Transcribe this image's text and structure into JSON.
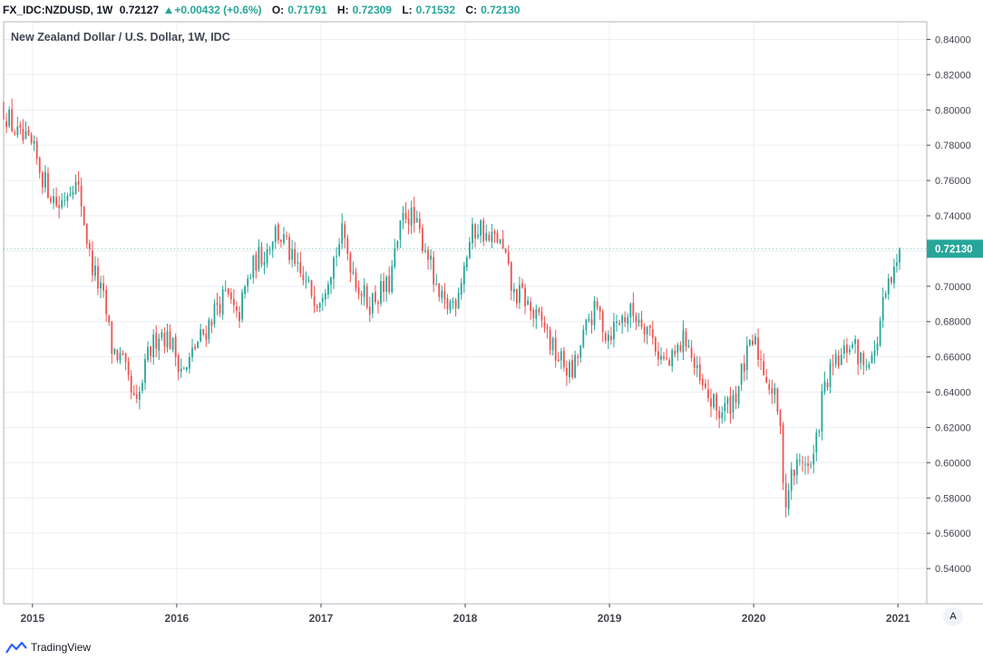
{
  "header": {
    "symbol": "FX_IDC:NZDUSD, 1W",
    "last": "0.72127",
    "change": "+0.00432 (+0.6%)",
    "open_label": "O:",
    "open": "0.71791",
    "high_label": "H:",
    "high": "0.72309",
    "low_label": "L:",
    "low": "0.71532",
    "close_label": "C:",
    "close": "0.72130"
  },
  "legend_title": "New Zealand Dollar / U.S. Dollar, 1W, IDC",
  "footer": {
    "brand": "TradingView",
    "scale_button": "A"
  },
  "colors": {
    "up": "#26a69a",
    "down": "#ef5350",
    "grid": "#e9eef2",
    "axis": "#434651"
  },
  "chart_data": {
    "type": "candlestick",
    "title": "New Zealand Dollar / U.S. Dollar, 1W, IDC",
    "ylim": [
      0.52,
      0.85
    ],
    "y_ticks": [
      "0.54000",
      "0.56000",
      "0.58000",
      "0.60000",
      "0.62000",
      "0.64000",
      "0.66000",
      "0.68000",
      "0.70000",
      "0.72000",
      "0.74000",
      "0.76000",
      "0.78000",
      "0.80000",
      "0.82000",
      "0.84000"
    ],
    "x_ticks": [
      "2015",
      "2016",
      "2017",
      "2018",
      "2019",
      "2020",
      "2021"
    ],
    "x_start": 2014.8,
    "x_end": 2021.2,
    "last_price_label": "0.72130",
    "close_path": [
      [
        2014.8,
        0.8
      ],
      [
        2014.9,
        0.785
      ],
      [
        2015.0,
        0.778
      ],
      [
        2015.08,
        0.76
      ],
      [
        2015.18,
        0.745
      ],
      [
        2015.28,
        0.76
      ],
      [
        2015.33,
        0.752
      ],
      [
        2015.4,
        0.715
      ],
      [
        2015.5,
        0.69
      ],
      [
        2015.55,
        0.665
      ],
      [
        2015.62,
        0.658
      ],
      [
        2015.68,
        0.64
      ],
      [
        2015.72,
        0.63
      ],
      [
        2015.8,
        0.66
      ],
      [
        2015.88,
        0.675
      ],
      [
        2015.95,
        0.67
      ],
      [
        2016.0,
        0.66
      ],
      [
        2016.06,
        0.65
      ],
      [
        2016.12,
        0.665
      ],
      [
        2016.2,
        0.675
      ],
      [
        2016.28,
        0.69
      ],
      [
        2016.35,
        0.695
      ],
      [
        2016.42,
        0.68
      ],
      [
        2016.48,
        0.7
      ],
      [
        2016.55,
        0.715
      ],
      [
        2016.62,
        0.72
      ],
      [
        2016.68,
        0.732
      ],
      [
        2016.75,
        0.725
      ],
      [
        2016.82,
        0.71
      ],
      [
        2016.9,
        0.7
      ],
      [
        2016.98,
        0.693
      ],
      [
        2017.04,
        0.705
      ],
      [
        2017.1,
        0.718
      ],
      [
        2017.15,
        0.73
      ],
      [
        2017.2,
        0.715
      ],
      [
        2017.26,
        0.7
      ],
      [
        2017.33,
        0.69
      ],
      [
        2017.4,
        0.696
      ],
      [
        2017.47,
        0.7
      ],
      [
        2017.54,
        0.728
      ],
      [
        2017.58,
        0.742
      ],
      [
        2017.62,
        0.74
      ],
      [
        2017.68,
        0.73
      ],
      [
        2017.74,
        0.72
      ],
      [
        2017.8,
        0.695
      ],
      [
        2017.86,
        0.688
      ],
      [
        2017.93,
        0.692
      ],
      [
        2017.98,
        0.708
      ],
      [
        2018.04,
        0.728
      ],
      [
        2018.1,
        0.735
      ],
      [
        2018.16,
        0.725
      ],
      [
        2018.22,
        0.728
      ],
      [
        2018.28,
        0.715
      ],
      [
        2018.33,
        0.695
      ],
      [
        2018.4,
        0.695
      ],
      [
        2018.48,
        0.682
      ],
      [
        2018.55,
        0.678
      ],
      [
        2018.6,
        0.665
      ],
      [
        2018.66,
        0.658
      ],
      [
        2018.74,
        0.65
      ],
      [
        2018.8,
        0.665
      ],
      [
        2018.86,
        0.682
      ],
      [
        2018.92,
        0.687
      ],
      [
        2018.98,
        0.672
      ],
      [
        2019.06,
        0.68
      ],
      [
        2019.14,
        0.685
      ],
      [
        2019.22,
        0.682
      ],
      [
        2019.28,
        0.675
      ],
      [
        2019.35,
        0.66
      ],
      [
        2019.42,
        0.655
      ],
      [
        2019.5,
        0.668
      ],
      [
        2019.54,
        0.672
      ],
      [
        2019.58,
        0.655
      ],
      [
        2019.64,
        0.642
      ],
      [
        2019.7,
        0.635
      ],
      [
        2019.76,
        0.628
      ],
      [
        2019.82,
        0.632
      ],
      [
        2019.88,
        0.64
      ],
      [
        2019.94,
        0.657
      ],
      [
        2020.0,
        0.669
      ],
      [
        2020.04,
        0.66
      ],
      [
        2020.08,
        0.651
      ],
      [
        2020.13,
        0.64
      ],
      [
        2020.17,
        0.63
      ],
      [
        2020.2,
        0.6
      ],
      [
        2020.22,
        0.575
      ],
      [
        2020.25,
        0.59
      ],
      [
        2020.3,
        0.598
      ],
      [
        2020.36,
        0.603
      ],
      [
        2020.38,
        0.596
      ],
      [
        2020.41,
        0.6
      ],
      [
        2020.44,
        0.615
      ],
      [
        2020.48,
        0.64
      ],
      [
        2020.52,
        0.648
      ],
      [
        2020.56,
        0.655
      ],
      [
        2020.62,
        0.66
      ],
      [
        2020.66,
        0.668
      ],
      [
        2020.7,
        0.665
      ],
      [
        2020.76,
        0.655
      ],
      [
        2020.8,
        0.662
      ],
      [
        2020.84,
        0.66
      ],
      [
        2020.86,
        0.672
      ],
      [
        2020.9,
        0.69
      ],
      [
        2020.95,
        0.702
      ],
      [
        2021.0,
        0.712
      ],
      [
        2021.02,
        0.7213
      ]
    ]
  }
}
